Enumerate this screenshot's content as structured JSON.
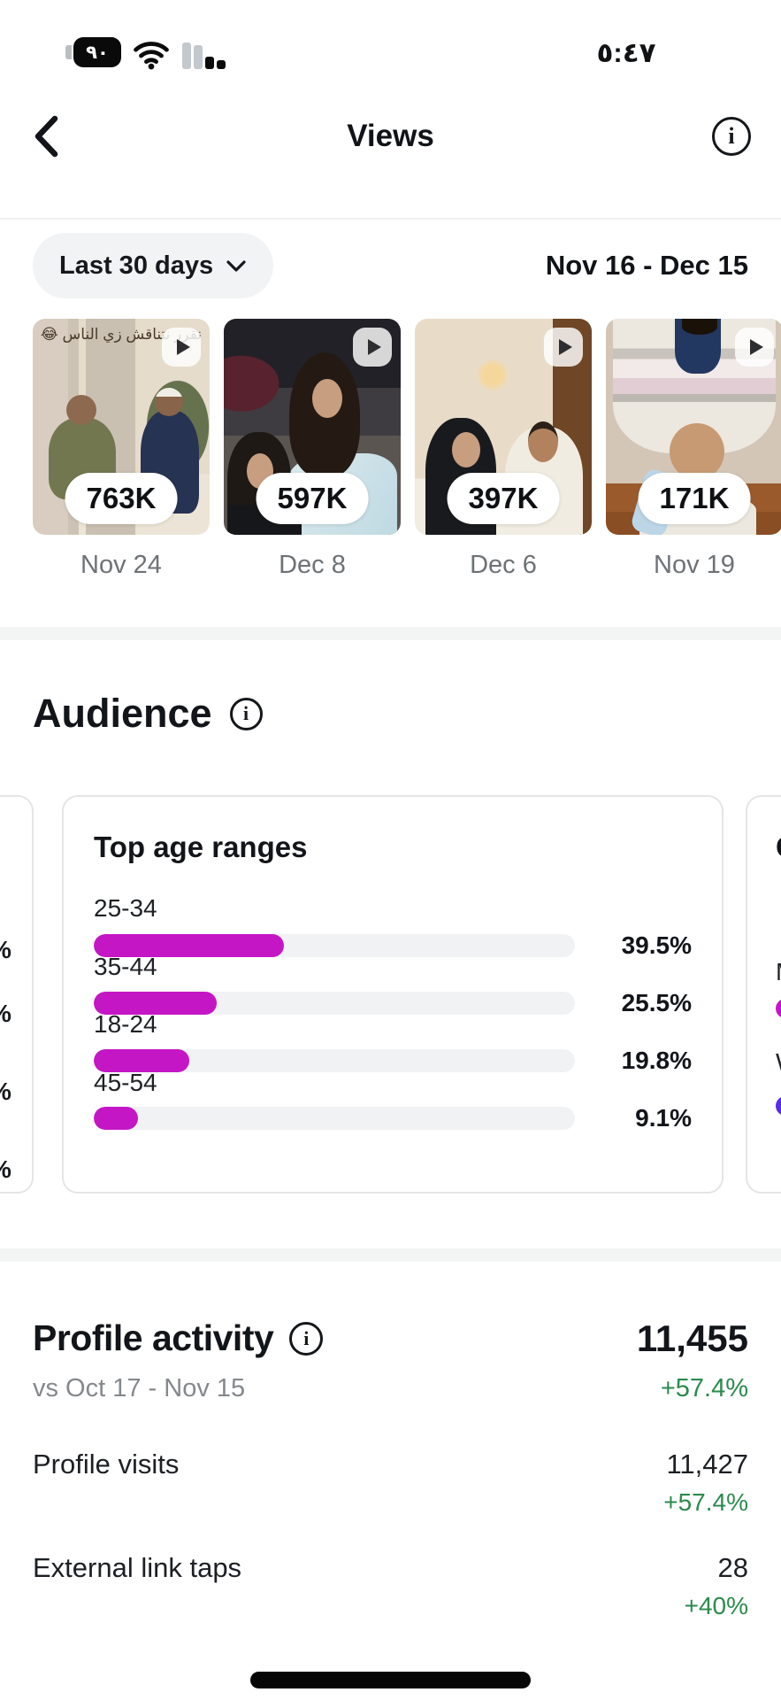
{
  "status_bar": {
    "time": "٥:٤٧",
    "battery_level": "٩٠"
  },
  "header": {
    "title": "Views"
  },
  "filter": {
    "period_label": "Last 30 days",
    "date_range": "Nov 16 - Dec 15"
  },
  "top_posts": [
    {
      "views": "763K",
      "date": "Nov 24",
      "caption": "نقرر نتناقش زي الناس 😂"
    },
    {
      "views": "597K",
      "date": "Dec 8"
    },
    {
      "views": "397K",
      "date": "Dec 6"
    },
    {
      "views": "171K",
      "date": "Nov 19"
    }
  ],
  "audience": {
    "heading": "Audience",
    "age_card": {
      "title": "Top age ranges",
      "rows": [
        {
          "label": "25-34",
          "value": "39.5%",
          "pct": 39.5
        },
        {
          "label": "35-44",
          "value": "25.5%",
          "pct": 25.5
        },
        {
          "label": "18-24",
          "value": "19.8%",
          "pct": 19.8
        },
        {
          "label": "45-54",
          "value": "9.1%",
          "pct": 9.1
        }
      ]
    },
    "left_card_fragments": [
      "%",
      "%",
      "%",
      "%"
    ],
    "right_card": {
      "title_fragment": "G",
      "rows": [
        {
          "label_fragment": "M",
          "color": "#c516c5"
        },
        {
          "label_fragment": "W",
          "color": "#5a2ce2"
        }
      ]
    }
  },
  "profile_activity": {
    "heading": "Profile activity",
    "total": "11,455",
    "total_change": "+57.4%",
    "comparison_label": "vs Oct 17 - Nov 15",
    "rows": [
      {
        "label": "Profile visits",
        "value": "11,427",
        "change": "+57.4%"
      },
      {
        "label": "External link taps",
        "value": "28",
        "change": "+40%"
      }
    ]
  },
  "chart_data": {
    "type": "bar",
    "title": "Top age ranges",
    "categories": [
      "25-34",
      "35-44",
      "18-24",
      "45-54"
    ],
    "values": [
      39.5,
      25.5,
      19.8,
      9.1
    ],
    "xlim": [
      0,
      100
    ]
  },
  "colors": {
    "accent_magenta": "#c516c5",
    "accent_violet": "#5a2ce2",
    "positive_green": "#2b8a4c"
  }
}
